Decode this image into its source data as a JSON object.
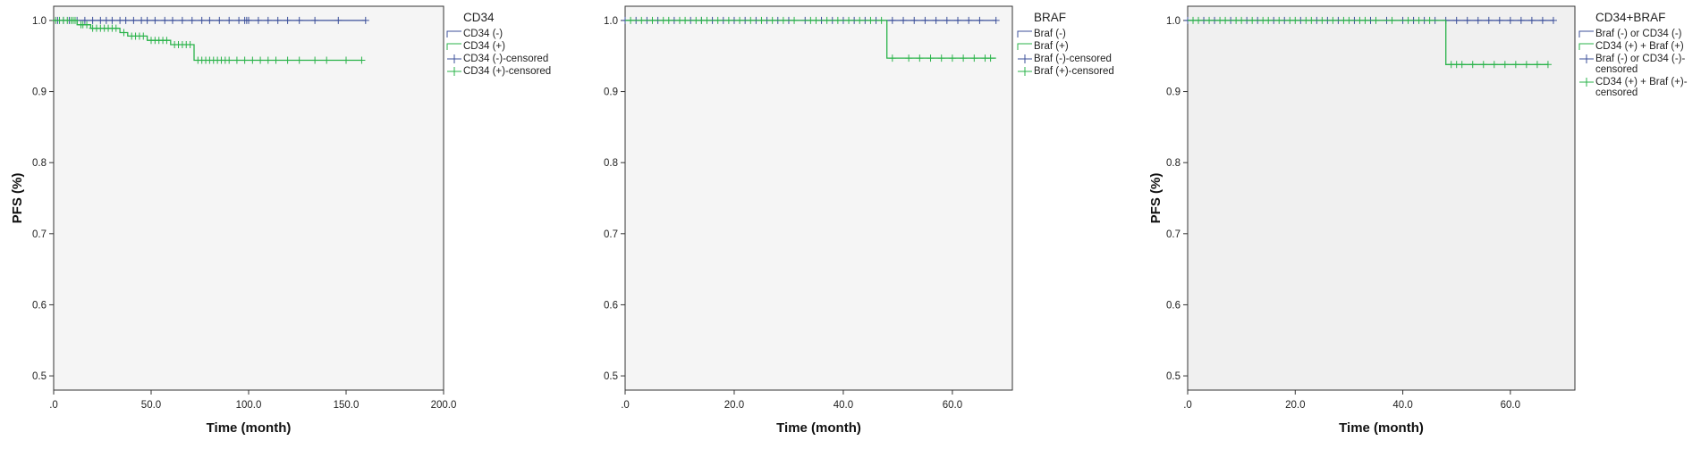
{
  "chart_data": [
    {
      "type": "line",
      "subtype": "kaplan-meier",
      "legend_title": "CD34",
      "xlabel": "Time (month)",
      "ylabel": "PFS (%)",
      "xlim": [
        0,
        200
      ],
      "ylim": [
        0.48,
        1.02
      ],
      "xticks": [
        0,
        50,
        100,
        150,
        200
      ],
      "xtick_labels": [
        ".0",
        "50.0",
        "100.0",
        "150.0",
        "200.0"
      ],
      "yticks": [
        0.5,
        0.6,
        0.7,
        0.8,
        0.9,
        1.0
      ],
      "ytick_labels": [
        "0.5",
        "0.6",
        "0.7",
        "0.8",
        "0.9",
        "1.0"
      ],
      "legend_position": "right",
      "legend": [
        "CD34 (-)",
        "CD34 (+)",
        "CD34 (-)-censored",
        "CD34 (+)-censored"
      ],
      "series": [
        {
          "name": "CD34 (-)",
          "color": "#3b4f9a",
          "steps": [
            [
              0,
              1.0
            ],
            [
              160,
              1.0
            ]
          ],
          "censored": [
            2,
            5,
            8,
            12,
            16,
            20,
            24,
            27,
            30,
            34,
            37,
            41,
            45,
            48,
            52,
            57,
            61,
            66,
            71,
            76,
            80,
            85,
            90,
            95,
            98,
            99,
            100,
            105,
            110,
            115,
            120,
            126,
            134,
            146,
            160
          ]
        },
        {
          "name": "CD34 (+)",
          "color": "#2ab34a",
          "steps": [
            [
              0,
              1.0
            ],
            [
              12,
              1.0
            ],
            [
              12,
              0.994
            ],
            [
              19,
              0.994
            ],
            [
              19,
              0.989
            ],
            [
              34,
              0.989
            ],
            [
              34,
              0.983
            ],
            [
              38,
              0.983
            ],
            [
              38,
              0.978
            ],
            [
              48,
              0.978
            ],
            [
              48,
              0.972
            ],
            [
              60,
              0.972
            ],
            [
              60,
              0.966
            ],
            [
              72,
              0.966
            ],
            [
              72,
              0.944
            ],
            [
              158,
              0.944
            ]
          ],
          "censored": [
            1,
            3,
            5,
            7,
            9,
            10,
            11,
            14,
            15,
            17,
            20,
            22,
            24,
            26,
            28,
            30,
            32,
            36,
            40,
            42,
            44,
            46,
            50,
            52,
            54,
            56,
            58,
            62,
            64,
            66,
            68,
            70,
            74,
            76,
            78,
            80,
            82,
            84,
            86,
            88,
            90,
            94,
            98,
            102,
            106,
            110,
            114,
            120,
            126,
            134,
            140,
            150,
            158
          ]
        }
      ]
    },
    {
      "type": "line",
      "subtype": "kaplan-meier",
      "legend_title": "BRAF",
      "xlabel": "Time (month)",
      "ylabel": "",
      "xlim": [
        0,
        71
      ],
      "ylim": [
        0.48,
        1.02
      ],
      "xticks": [
        0,
        20,
        40,
        60
      ],
      "xtick_labels": [
        ".0",
        "20.0",
        "40.0",
        "60.0"
      ],
      "yticks": [
        0.5,
        0.6,
        0.7,
        0.8,
        0.9,
        1.0
      ],
      "ytick_labels": [
        "0.5",
        "0.6",
        "0.7",
        "0.8",
        "0.9",
        "1.0"
      ],
      "legend_position": "right",
      "legend": [
        "Braf (-)",
        "Braf (+)",
        "Braf (-)-censored",
        "Braf (+)-censored"
      ],
      "series": [
        {
          "name": "Braf (-)",
          "color": "#3b4f9a",
          "steps": [
            [
              0,
              1.0
            ],
            [
              68,
              1.0
            ]
          ],
          "censored": [
            0,
            2,
            4,
            6,
            9,
            12,
            14,
            16,
            18,
            20,
            22,
            24,
            26,
            28,
            30,
            33,
            36,
            38,
            40,
            42,
            44,
            46,
            49,
            51,
            53,
            55,
            57,
            59,
            61,
            63,
            65,
            68
          ]
        },
        {
          "name": "Braf (+)",
          "color": "#2ab34a",
          "steps": [
            [
              0,
              1.0
            ],
            [
              48,
              1.0
            ],
            [
              48,
              0.947
            ],
            [
              68,
              0.947
            ]
          ],
          "censored": [
            1,
            3,
            5,
            7,
            8,
            10,
            11,
            13,
            14,
            15,
            17,
            19,
            21,
            23,
            25,
            27,
            29,
            31,
            34,
            35,
            37,
            39,
            41,
            43,
            45,
            47,
            49,
            52,
            54,
            56,
            58,
            60,
            62,
            64,
            66,
            67
          ]
        }
      ]
    },
    {
      "type": "line",
      "subtype": "kaplan-meier",
      "legend_title": "CD34+BRAF",
      "xlabel": "Time (month)",
      "ylabel": "PFS (%)",
      "xlim": [
        0,
        72
      ],
      "ylim": [
        0.48,
        1.02
      ],
      "xticks": [
        0,
        20,
        40,
        60
      ],
      "xtick_labels": [
        ".0",
        "20.0",
        "40.0",
        "60.0"
      ],
      "yticks": [
        0.5,
        0.6,
        0.7,
        0.8,
        0.9,
        1.0
      ],
      "ytick_labels": [
        "0.5",
        "0.6",
        "0.7",
        "0.8",
        "0.9",
        "1.0"
      ],
      "legend_position": "right",
      "legend": [
        "Braf (-) or CD34 (-)",
        "CD34 (+) + Braf (+)",
        "Braf (-) or CD34 (-)-censored",
        "CD34 (+) + Braf (+)-censored"
      ],
      "series": [
        {
          "name": "Braf (-) or CD34 (-)",
          "color": "#3b4f9a",
          "steps": [
            [
              0,
              1.0
            ],
            [
              68,
              1.0
            ]
          ],
          "censored": [
            0,
            3,
            5,
            8,
            11,
            13,
            16,
            18,
            21,
            24,
            26,
            28,
            31,
            34,
            37,
            40,
            42,
            44,
            46,
            48,
            50,
            52,
            54,
            56,
            58,
            60,
            62,
            64,
            66,
            68
          ]
        },
        {
          "name": "CD34 (+) + Braf (+)",
          "color": "#2ab34a",
          "steps": [
            [
              0,
              1.0
            ],
            [
              48,
              1.0
            ],
            [
              48,
              0.938
            ],
            [
              67,
              0.938
            ]
          ],
          "censored": [
            1,
            2,
            4,
            6,
            7,
            9,
            10,
            12,
            14,
            15,
            17,
            19,
            20,
            22,
            23,
            25,
            27,
            29,
            30,
            32,
            33,
            35,
            38,
            41,
            43,
            45,
            49,
            50,
            51,
            53,
            55,
            57,
            59,
            61,
            63,
            65,
            67
          ]
        }
      ]
    }
  ]
}
